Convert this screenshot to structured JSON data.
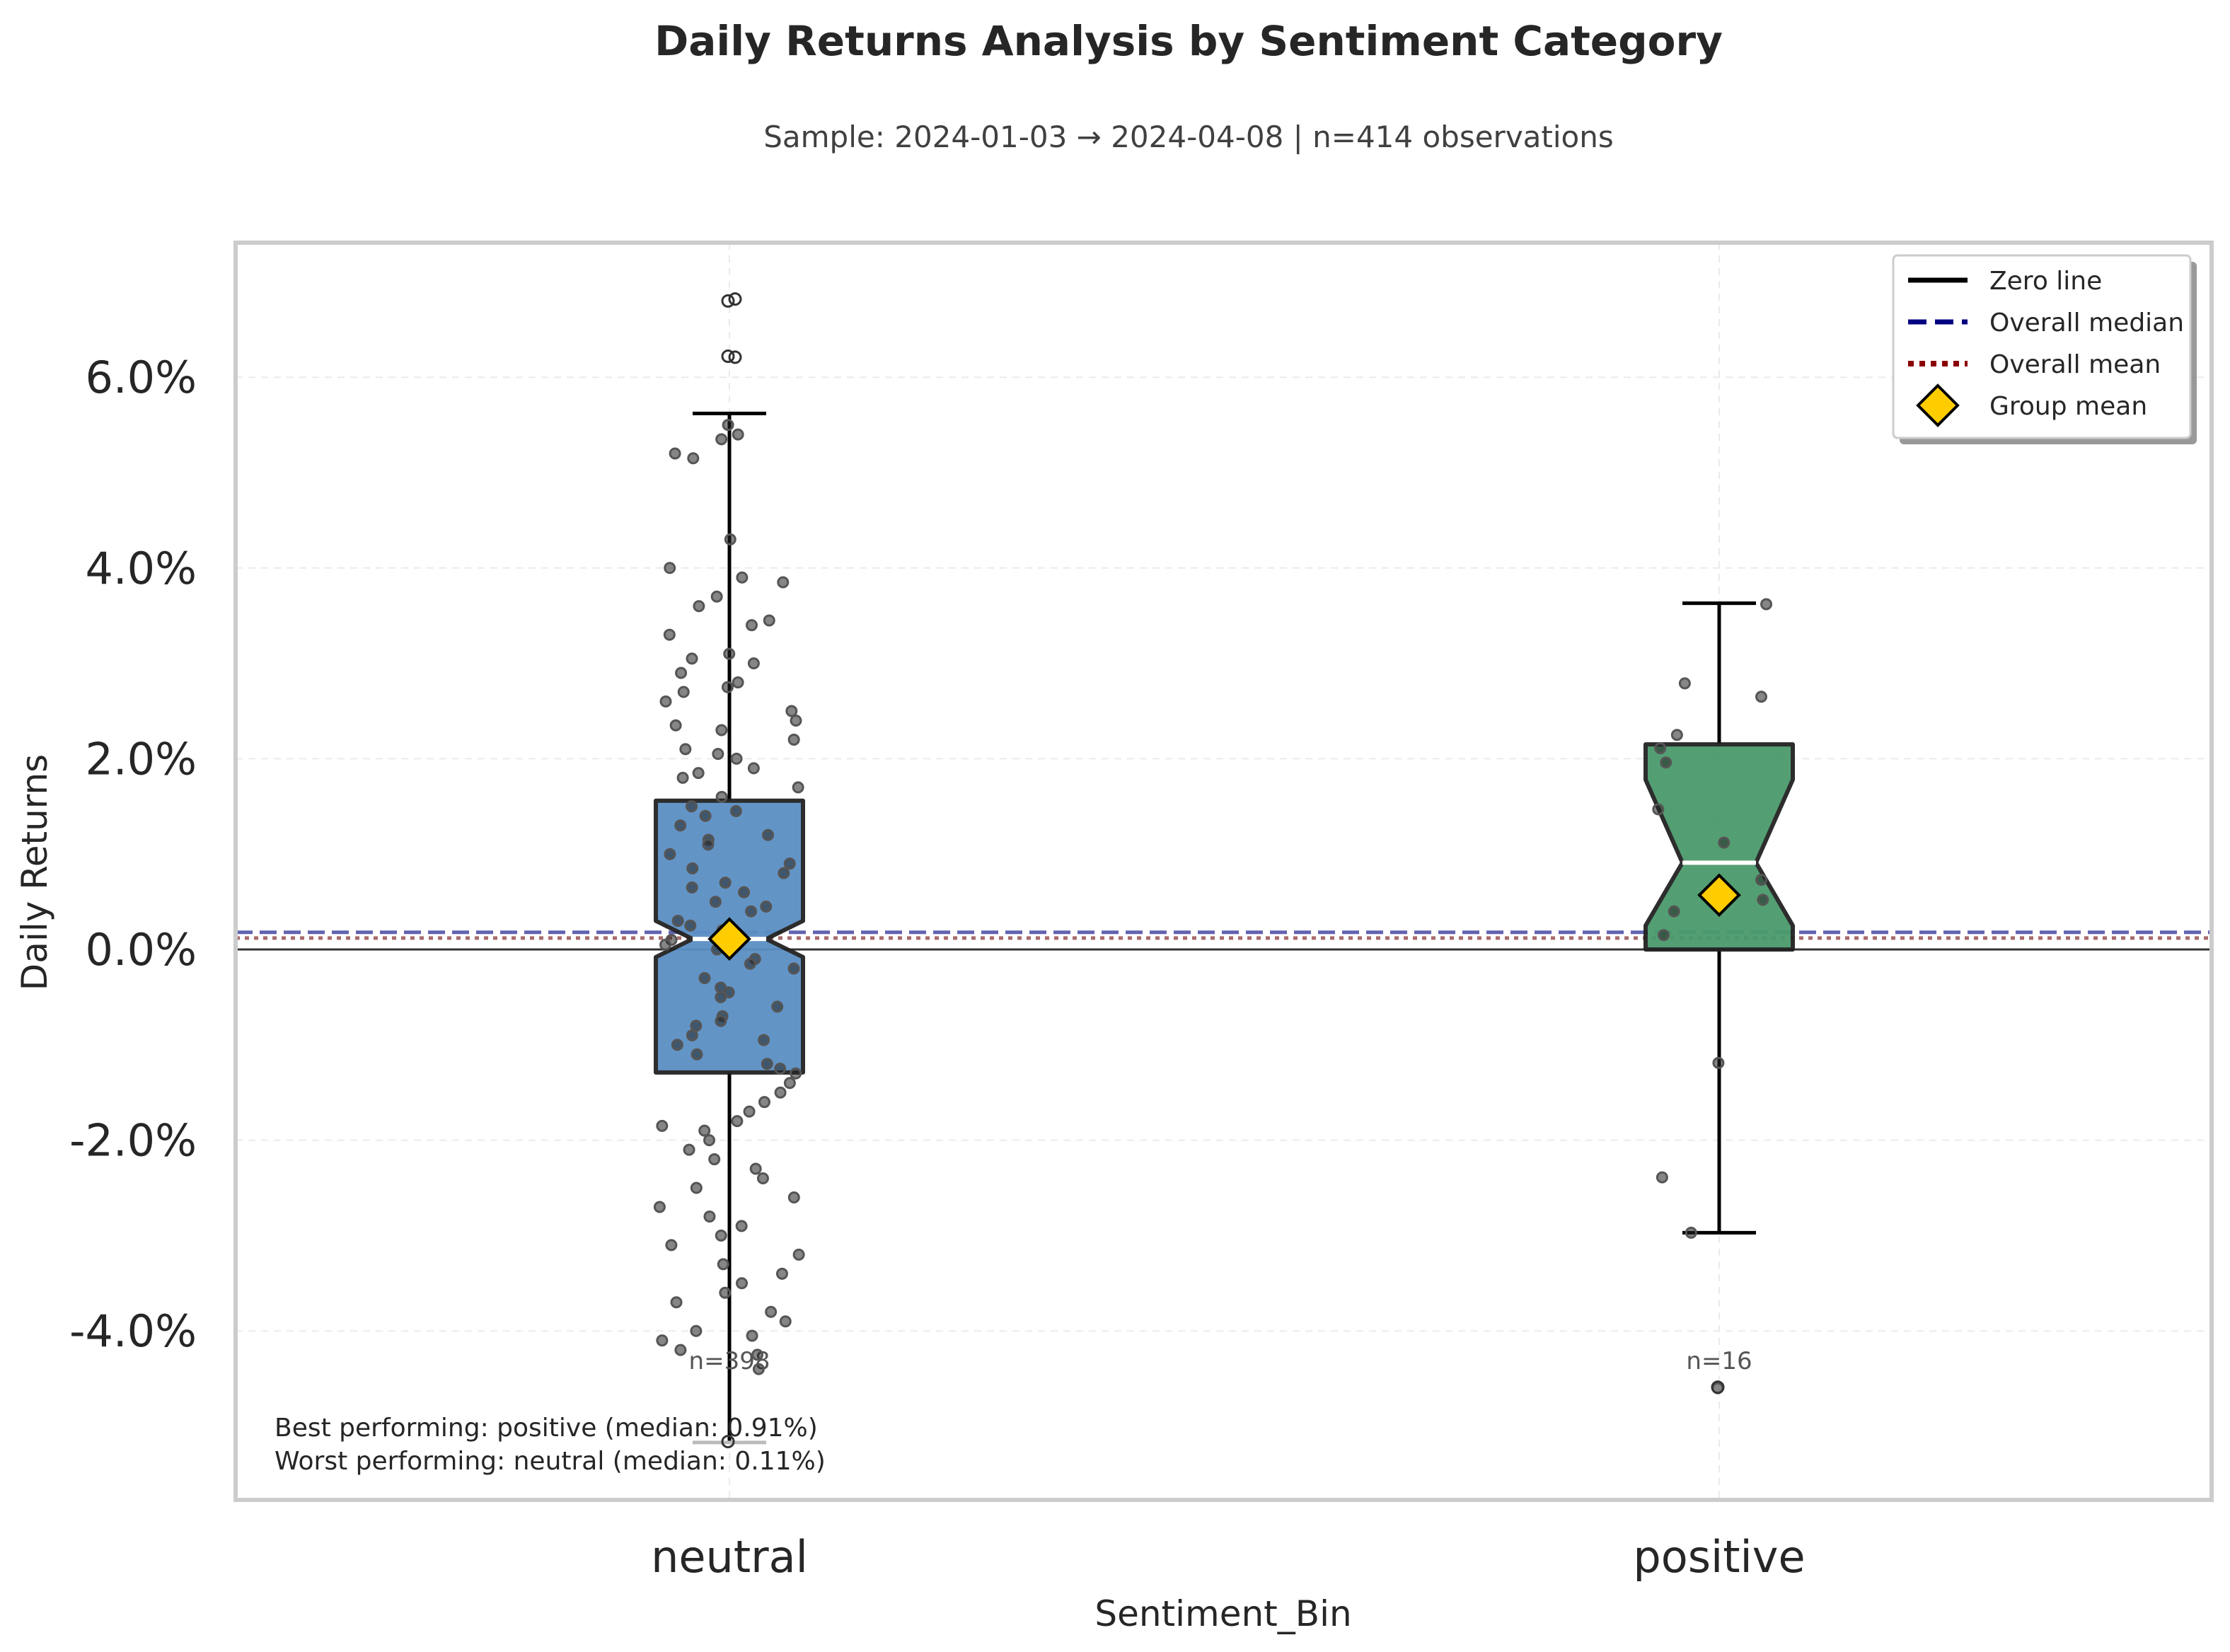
{
  "chart_data": {
    "type": "box",
    "title": "Daily Returns Analysis by Sentiment Category",
    "subtitle": "Sample: 2024-01-03 → 2024-04-08 | n=414 observations",
    "xlabel": "Sentiment_Bin",
    "ylabel": "Daily Returns",
    "ylim": [
      -0.057,
      0.074
    ],
    "yticks": [
      -0.04,
      -0.02,
      0.0,
      0.02,
      0.04,
      0.06
    ],
    "ytick_labels": [
      "-4.0%",
      "-2.0%",
      "0.0%",
      "2.0%",
      "4.0%",
      "6.0%"
    ],
    "grid": true,
    "legend_position": "top-right",
    "legend": [
      {
        "label": "Zero line",
        "style": "solid",
        "color": "#000000"
      },
      {
        "label": "Overall median",
        "style": "dashed",
        "color": "#000080"
      },
      {
        "label": "Overall mean",
        "style": "dotted",
        "color": "#8b0000"
      },
      {
        "label": "Group mean",
        "style": "diamond",
        "color": "#ffcc00"
      }
    ],
    "reference_lines": {
      "zero": 0.0,
      "overall_median": 0.0018,
      "overall_mean": 0.0012
    },
    "categories": [
      "neutral",
      "positive"
    ],
    "boxes": [
      {
        "name": "neutral",
        "color": "#5b8fc4",
        "n_label": "n=398",
        "whisker_low": -0.0517,
        "q1": -0.0129,
        "median": 0.0011,
        "q3": 0.0156,
        "whisker_high": 0.0562,
        "notch_low": -0.0008,
        "notch_high": 0.003,
        "mean": 0.0011,
        "outliers": [
          0.068,
          0.0682,
          0.0622,
          0.0621,
          -0.0516
        ],
        "points": [
          0.055,
          0.054,
          0.052,
          0.0515,
          0.0535,
          0.043,
          0.04,
          0.0385,
          0.039,
          0.037,
          0.036,
          0.0345,
          0.034,
          0.033,
          0.031,
          0.0305,
          0.03,
          0.029,
          0.028,
          0.0275,
          0.027,
          0.026,
          0.025,
          0.024,
          0.0235,
          0.023,
          0.022,
          0.021,
          0.0205,
          0.02,
          0.019,
          0.0185,
          0.018,
          0.017,
          0.016,
          0.015,
          0.0145,
          0.014,
          0.013,
          0.012,
          0.0115,
          0.011,
          0.01,
          0.009,
          0.0085,
          0.008,
          0.007,
          0.0065,
          0.006,
          0.005,
          0.0045,
          0.004,
          0.003,
          0.0025,
          0.002,
          0.001,
          0.0005,
          0.0,
          -0.001,
          -0.0015,
          -0.002,
          -0.003,
          -0.004,
          -0.0045,
          -0.005,
          -0.006,
          -0.007,
          -0.0075,
          -0.008,
          -0.009,
          -0.0095,
          -0.01,
          -0.011,
          -0.012,
          -0.0125,
          -0.013,
          -0.014,
          -0.015,
          -0.016,
          -0.017,
          -0.018,
          -0.0185,
          -0.019,
          -0.02,
          -0.021,
          -0.022,
          -0.023,
          -0.024,
          -0.025,
          -0.026,
          -0.027,
          -0.028,
          -0.029,
          -0.03,
          -0.031,
          -0.032,
          -0.033,
          -0.034,
          -0.035,
          -0.036,
          -0.037,
          -0.038,
          -0.039,
          -0.04,
          -0.041,
          -0.042,
          -0.044,
          -0.0425,
          -0.0405
        ]
      },
      {
        "name": "positive",
        "color": "#4a9a6c",
        "n_label": "n=16",
        "whisker_low": -0.0297,
        "q1": 0.0,
        "median": 0.0091,
        "q3": 0.0215,
        "whisker_high": 0.0363,
        "notch_low": 0.0025,
        "notch_high": 0.0178,
        "mean": 0.0057,
        "outliers": [
          -0.0459
        ],
        "points": [
          0.0362,
          0.0279,
          0.0265,
          0.0225,
          0.0211,
          0.0196,
          0.0147,
          0.0112,
          0.0073,
          0.0052,
          0.004,
          -0.0119,
          -0.0239,
          -0.0297,
          -0.046,
          0.0015
        ]
      }
    ],
    "annotations": [
      "Best performing: positive (median: 0.91%)",
      "Worst performing: neutral (median: 0.11%)"
    ]
  }
}
